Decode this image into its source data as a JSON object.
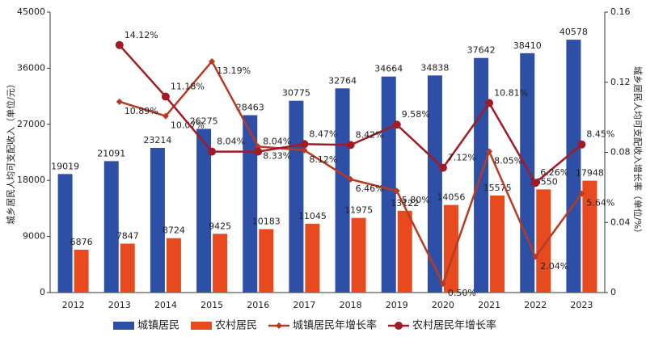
{
  "chart_data": {
    "type": "bar-line",
    "y_label": "城乡居民人均可支配收入（单位/元）",
    "y2_label": "城乡居民人均可支配收入增长率（单位/%）",
    "categories": [
      "2012",
      "2013",
      "2014",
      "2015",
      "2016",
      "2017",
      "2018",
      "2019",
      "2020",
      "2021",
      "2022",
      "2023"
    ],
    "ylim": [
      0,
      45000
    ],
    "yticks": [
      0,
      9000,
      18000,
      27000,
      36000,
      45000
    ],
    "y2lim": [
      0,
      0.16
    ],
    "y2ticks": [
      0,
      0.04,
      0.08,
      0.12,
      0.16
    ],
    "series": [
      {
        "name": "城镇居民",
        "color": "#2e4fa6",
        "kind": "bar",
        "values": [
          19019,
          21091,
          23214,
          26275,
          28463,
          30775,
          32764,
          34664,
          34838,
          37642,
          38410,
          40578
        ]
      },
      {
        "name": "农村居民",
        "color": "#e84a1f",
        "kind": "bar",
        "values": [
          6876,
          7847,
          8724,
          9425,
          10183,
          11045,
          11975,
          13122,
          14056,
          15575,
          16550,
          17948
        ]
      },
      {
        "name": "城镇居民年增长率",
        "color": "#b83a22",
        "kind": "line",
        "marker": "diamond",
        "axis": "y2",
        "values": [
          null,
          0.1089,
          0.1007,
          0.1319,
          0.0833,
          0.0812,
          0.0646,
          0.058,
          0.005,
          0.0805,
          0.0204,
          0.0564
        ],
        "value_labels": [
          null,
          "10.89%",
          "10.07%",
          "13.19%",
          "8.33%",
          "8.12%",
          "6.46%",
          "5.80%",
          "0.50%",
          "8.05%",
          "2.04%",
          "5.64%"
        ]
      },
      {
        "name": "农村居民年增长率",
        "color": "#a11b26",
        "kind": "line",
        "marker": "circle",
        "axis": "y2",
        "values": [
          null,
          0.1412,
          0.1118,
          0.0804,
          0.0804,
          0.0847,
          0.0842,
          0.0958,
          0.0712,
          0.1081,
          0.0626,
          0.0845
        ],
        "value_labels": [
          null,
          "14.12%",
          "11.18%",
          "8.04%",
          "8.04%",
          "8.47%",
          "8.42%",
          "9.58%",
          "7.12%",
          "10.81%",
          "6.26%",
          "8.45%"
        ]
      }
    ]
  }
}
